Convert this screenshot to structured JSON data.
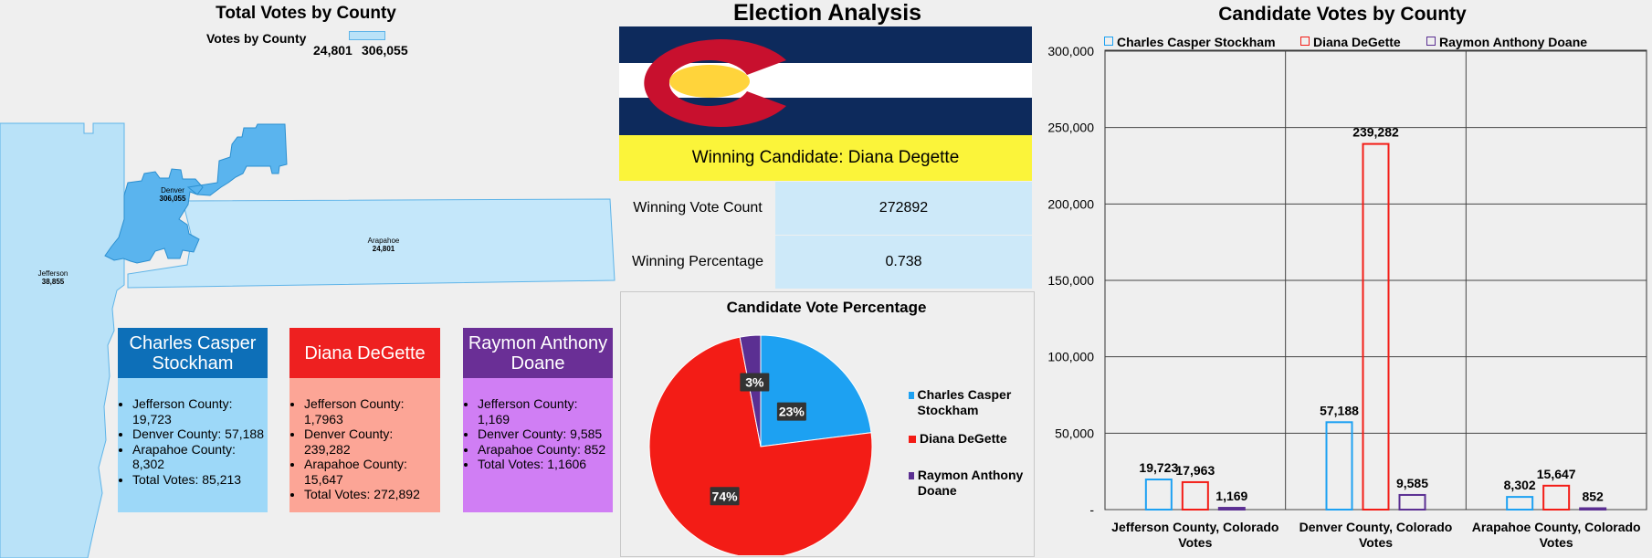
{
  "map": {
    "title": "Total Votes by County",
    "legend_label": "Votes by County",
    "legend_min": "24,801",
    "legend_max": "306,055",
    "counties": [
      {
        "name": "Denver",
        "value": "306,055"
      },
      {
        "name": "Arapahoe",
        "value": "24,801"
      },
      {
        "name": "Jefferson",
        "value": "38,855"
      }
    ]
  },
  "cards": [
    {
      "name": "Charles Casper Stockham",
      "head_color": "#0d6fb8",
      "body_color": "#9dd8f8",
      "lines": [
        "Jefferson County: 19,723",
        "Denver County: 57,188",
        "Arapahoe County: 8,302",
        "Total Votes: 85,213"
      ]
    },
    {
      "name": "Diana DeGette",
      "head_color": "#ee2020",
      "body_color": "#fca596",
      "lines": [
        "Jefferson County: 1,7963",
        "Denver County: 239,282",
        "Arapahoe County: 15,647",
        "Total Votes: 272,892"
      ]
    },
    {
      "name": "Raymon Anthony Doane",
      "head_color": "#6a2f96",
      "body_color": "#d07ef4",
      "lines": [
        "Jefferson County: 1,169",
        "Denver County: 9,585",
        "Arapahoe County: 852",
        "Total Votes: 1,1606"
      ]
    }
  ],
  "center": {
    "title": "Election Analysis",
    "winner_banner": "Winning Candidate: Diana Degette",
    "stats": [
      {
        "label": "Winning Vote Count",
        "value": "272892"
      },
      {
        "label": "Winning Percentage",
        "value": "0.738"
      }
    ]
  },
  "colors": {
    "stockham": "#1da1f2",
    "degette": "#f31c16",
    "doane": "#5b2f92",
    "flag_blue": "#0d2a5c",
    "flag_red": "#c8102e",
    "flag_gold": "#ffd43b"
  },
  "chart_data": [
    {
      "type": "pie",
      "title": "Candidate Vote Percentage",
      "categories": [
        "Charles Casper Stockham",
        "Diana DeGette",
        "Raymon Anthony Doane"
      ],
      "values": [
        23,
        74,
        3
      ],
      "labels": [
        "23%",
        "74%",
        "3%"
      ],
      "legend": "right"
    },
    {
      "type": "bar",
      "title": "Candidate Votes by County",
      "categories": [
        "Jefferson County, Colorado Votes",
        "Denver County, Colorado Votes",
        "Arapahoe County, Colorado Votes"
      ],
      "series": [
        {
          "name": "Charles Casper Stockham",
          "values": [
            19723,
            57188,
            8302
          ],
          "labels": [
            "19,723",
            "57,188",
            "8,302"
          ]
        },
        {
          "name": "Diana DeGette",
          "values": [
            17963,
            239282,
            15647
          ],
          "labels": [
            "17,963",
            "239,282",
            "15,647"
          ]
        },
        {
          "name": "Raymon Anthony Doane",
          "values": [
            1169,
            9585,
            852
          ],
          "labels": [
            "1,169",
            "9,585",
            "852"
          ]
        }
      ],
      "yticks": [
        "-",
        "50,000",
        "100,000",
        "150,000",
        "200,000",
        "250,000",
        "300,000"
      ],
      "ylim": [
        0,
        300000
      ],
      "grid": true,
      "legend": "top"
    }
  ]
}
